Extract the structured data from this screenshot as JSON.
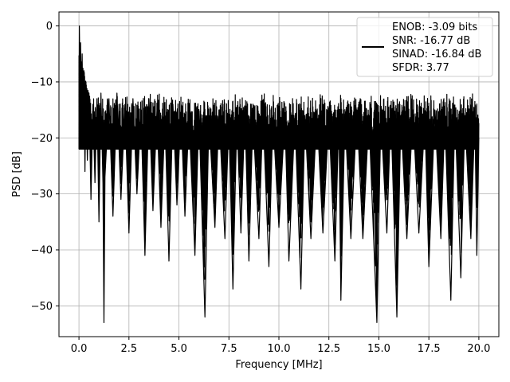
{
  "chart_data": {
    "type": "line",
    "xlabel": "Frequency [MHz]",
    "ylabel": "PSD [dB]",
    "xlim": [
      -1.0,
      21.0
    ],
    "ylim": [
      -55.5,
      2.5
    ],
    "xticks": [
      0.0,
      2.5,
      5.0,
      7.5,
      10.0,
      12.5,
      15.0,
      17.5,
      20.0
    ],
    "xtick_labels": [
      "0.0",
      "2.5",
      "5.0",
      "7.5",
      "10.0",
      "12.5",
      "15.0",
      "17.5",
      "20.0"
    ],
    "yticks": [
      0,
      -10,
      -20,
      -30,
      -40,
      -50
    ],
    "ytick_labels": [
      "0",
      "−10",
      "−20",
      "−30",
      "−40",
      "−50"
    ],
    "grid": true,
    "legend_position": "top-right",
    "legend_lines": [
      "ENOB: -3.09 bits",
      "SNR: -16.77 dB",
      "SINAD: -16.84 dB",
      "SFDR: 3.77"
    ],
    "series": [
      {
        "color": "#000000",
        "points": [
          [
            0.0,
            -22
          ],
          [
            0.02,
            0
          ],
          [
            0.05,
            -9
          ],
          [
            0.08,
            -3
          ],
          [
            0.12,
            -13
          ],
          [
            0.16,
            -5
          ],
          [
            0.2,
            -19
          ],
          [
            0.25,
            -8
          ],
          [
            0.3,
            -26
          ],
          [
            0.35,
            -10
          ],
          [
            0.42,
            -24
          ],
          [
            0.5,
            -12
          ],
          [
            0.6,
            -31
          ],
          [
            0.7,
            -14
          ],
          [
            0.8,
            -28
          ],
          [
            0.9,
            -13
          ],
          [
            1.0,
            -35
          ],
          [
            1.1,
            -12
          ],
          [
            1.2,
            -28
          ],
          [
            1.25,
            -53
          ],
          [
            1.3,
            -27
          ],
          [
            1.5,
            -13
          ],
          [
            1.7,
            -34
          ],
          [
            1.9,
            -12
          ],
          [
            2.1,
            -31
          ],
          [
            2.3,
            -14
          ],
          [
            2.5,
            -37
          ],
          [
            2.7,
            -13
          ],
          [
            2.9,
            -30
          ],
          [
            3.1,
            -15
          ],
          [
            3.3,
            -41
          ],
          [
            3.5,
            -13
          ],
          [
            3.7,
            -33
          ],
          [
            3.9,
            -15
          ],
          [
            4.1,
            -36
          ],
          [
            4.3,
            -16
          ],
          [
            4.5,
            -42
          ],
          [
            4.7,
            -14
          ],
          [
            4.9,
            -32
          ],
          [
            5.1,
            -15
          ],
          [
            5.3,
            -34
          ],
          [
            5.5,
            -16
          ],
          [
            5.8,
            -41
          ],
          [
            6.0,
            -15
          ],
          [
            6.3,
            -52
          ],
          [
            6.5,
            -16
          ],
          [
            6.8,
            -36
          ],
          [
            7.0,
            -15
          ],
          [
            7.3,
            -38
          ],
          [
            7.5,
            -16
          ],
          [
            7.7,
            -47
          ],
          [
            7.9,
            -16
          ],
          [
            8.1,
            -37
          ],
          [
            8.3,
            -15
          ],
          [
            8.5,
            -42
          ],
          [
            8.7,
            -16
          ],
          [
            9.0,
            -38
          ],
          [
            9.2,
            -15
          ],
          [
            9.5,
            -43
          ],
          [
            9.7,
            -16
          ],
          [
            10.0,
            -36
          ],
          [
            10.3,
            -16
          ],
          [
            10.5,
            -42
          ],
          [
            10.8,
            -16
          ],
          [
            11.1,
            -47
          ],
          [
            11.3,
            -16
          ],
          [
            11.6,
            -38
          ],
          [
            11.9,
            -15
          ],
          [
            12.2,
            -37
          ],
          [
            12.5,
            -16
          ],
          [
            12.8,
            -42
          ],
          [
            13.0,
            -16
          ],
          [
            13.1,
            -49
          ],
          [
            13.3,
            -16
          ],
          [
            13.6,
            -38
          ],
          [
            13.9,
            -15
          ],
          [
            14.2,
            -38
          ],
          [
            14.5,
            -16
          ],
          [
            14.9,
            -53
          ],
          [
            15.1,
            -16
          ],
          [
            15.4,
            -37
          ],
          [
            15.6,
            -15
          ],
          [
            15.9,
            -52
          ],
          [
            16.1,
            -16
          ],
          [
            16.4,
            -38
          ],
          [
            16.7,
            -15
          ],
          [
            17.0,
            -37
          ],
          [
            17.3,
            -16
          ],
          [
            17.5,
            -43
          ],
          [
            17.8,
            -15
          ],
          [
            18.1,
            -38
          ],
          [
            18.3,
            -16
          ],
          [
            18.6,
            -49
          ],
          [
            18.8,
            -15
          ],
          [
            19.1,
            -45
          ],
          [
            19.3,
            -16
          ],
          [
            19.6,
            -38
          ],
          [
            19.8,
            -16
          ],
          [
            19.9,
            -41
          ],
          [
            20.0,
            -20
          ]
        ]
      }
    ]
  }
}
